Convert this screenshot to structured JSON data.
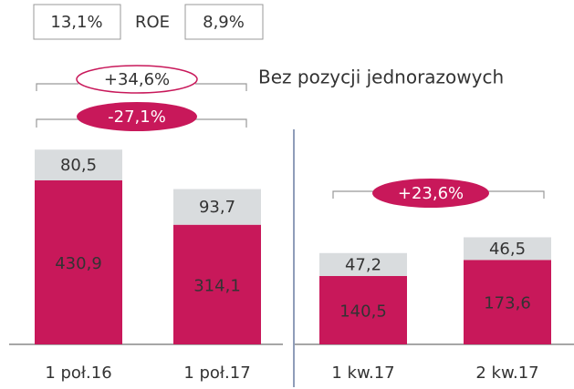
{
  "chart_data": {
    "type": "bar",
    "stacked": true,
    "categories": [
      "1 poł.16",
      "1 poł.17",
      "1 kw.17",
      "2 kw.17"
    ],
    "series": [
      {
        "color": "#c8185a",
        "values": [
          430.9,
          314.1,
          140.5,
          173.6
        ],
        "value_labels": [
          "430,9",
          "314,1",
          "140,5",
          "173,6"
        ]
      },
      {
        "color": "#d9dcde",
        "values": [
          80.5,
          93.7,
          47.2,
          46.5
        ],
        "value_labels": [
          "80,5",
          "93,7",
          "47,2",
          "46,5"
        ]
      }
    ],
    "roe": {
      "left": "13,1%",
      "label": "ROE",
      "right": "8,9%"
    },
    "annotations": {
      "excl_change": "+34,6%",
      "excl_note": "Bez pozycji jednorazowych",
      "half_change": "-27,1%",
      "quarter_change": "+23,6%"
    }
  }
}
